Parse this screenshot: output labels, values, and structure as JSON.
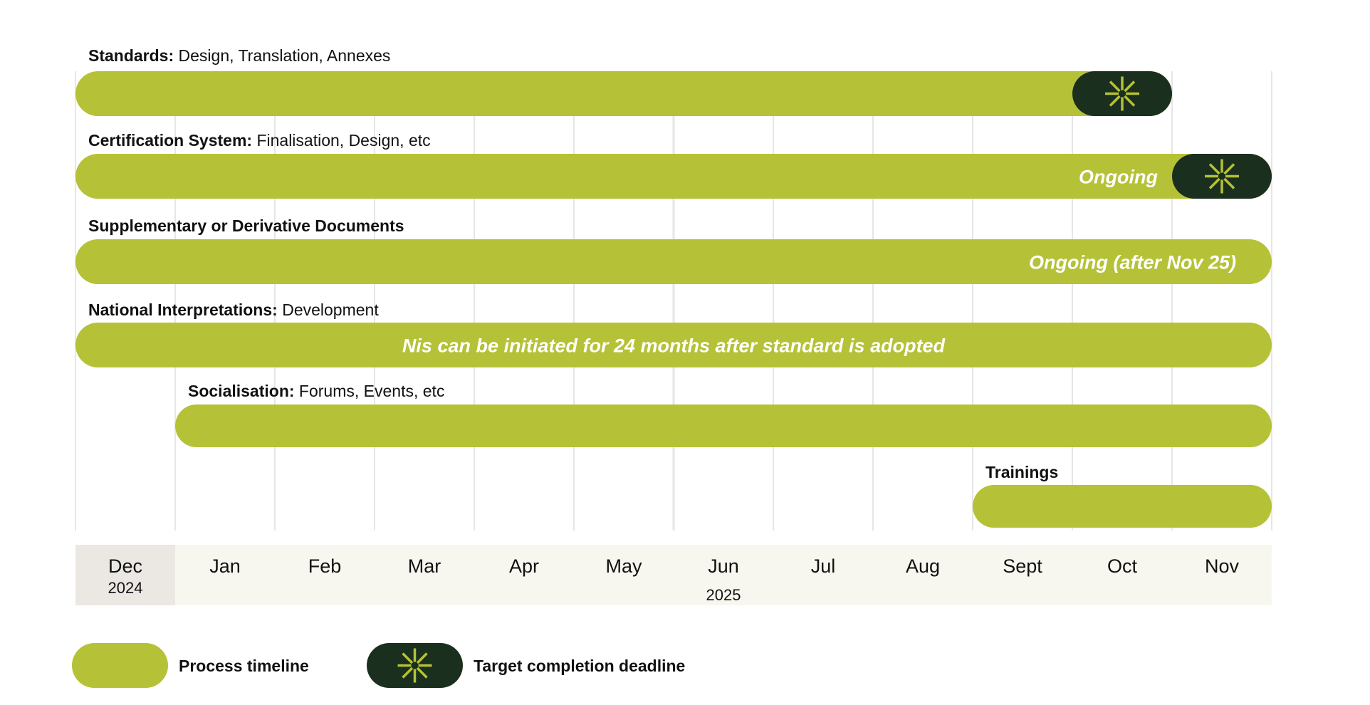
{
  "chart_data": {
    "type": "gantt",
    "colors": {
      "process": "#b5c237",
      "deadline": "#1b2f1e",
      "star": "#b5c237",
      "grid": "#e6e6e6",
      "axis_bg": "#f8f7ef",
      "axis_first_bg": "#ebe8e4",
      "note_text": "#ffffff"
    },
    "months": [
      {
        "label": "Dec",
        "year": "2024"
      },
      {
        "label": "Jan",
        "year": ""
      },
      {
        "label": "Feb",
        "year": ""
      },
      {
        "label": "Mar",
        "year": ""
      },
      {
        "label": "Apr",
        "year": ""
      },
      {
        "label": "May",
        "year": ""
      },
      {
        "label": "Jun",
        "year": "2025"
      },
      {
        "label": "Jul",
        "year": ""
      },
      {
        "label": "Aug",
        "year": ""
      },
      {
        "label": "Sept",
        "year": ""
      },
      {
        "label": "Oct",
        "year": ""
      },
      {
        "label": "Nov",
        "year": ""
      }
    ],
    "tasks": [
      {
        "bold": "Standards:",
        "rest": " Design, Translation, Annexes",
        "start": 0,
        "end": 11,
        "note": "",
        "deadline": [
          10,
          11
        ]
      },
      {
        "bold": "Certification System:",
        "rest": " Finalisation, Design, etc",
        "start": 0,
        "end": 12,
        "note": "Ongoing",
        "note_align": "end",
        "deadline": [
          11,
          12
        ]
      },
      {
        "bold": "Supplementary or Derivative Documents",
        "rest": "",
        "start": 0,
        "end": 12,
        "note": "Ongoing (after Nov 25)",
        "note_align": "end",
        "deadline": null
      },
      {
        "bold": "National Interpretations:",
        "rest": " Development",
        "start": 0,
        "end": 12,
        "note": "Nis can be initiated for 24 months after standard is adopted",
        "note_align": "middle",
        "deadline": null
      },
      {
        "bold": "Socialisation:",
        "rest": " Forums, Events, etc",
        "start": 1,
        "end": 12,
        "note": "",
        "deadline": null
      },
      {
        "bold": "Trainings",
        "rest": "",
        "start": 9,
        "end": 12,
        "note": "",
        "deadline": null
      }
    ],
    "legend": [
      {
        "key": "process",
        "label": "Process timeline"
      },
      {
        "key": "deadline",
        "label": "Target completion deadline",
        "icon": "asterisk-icon"
      }
    ]
  }
}
